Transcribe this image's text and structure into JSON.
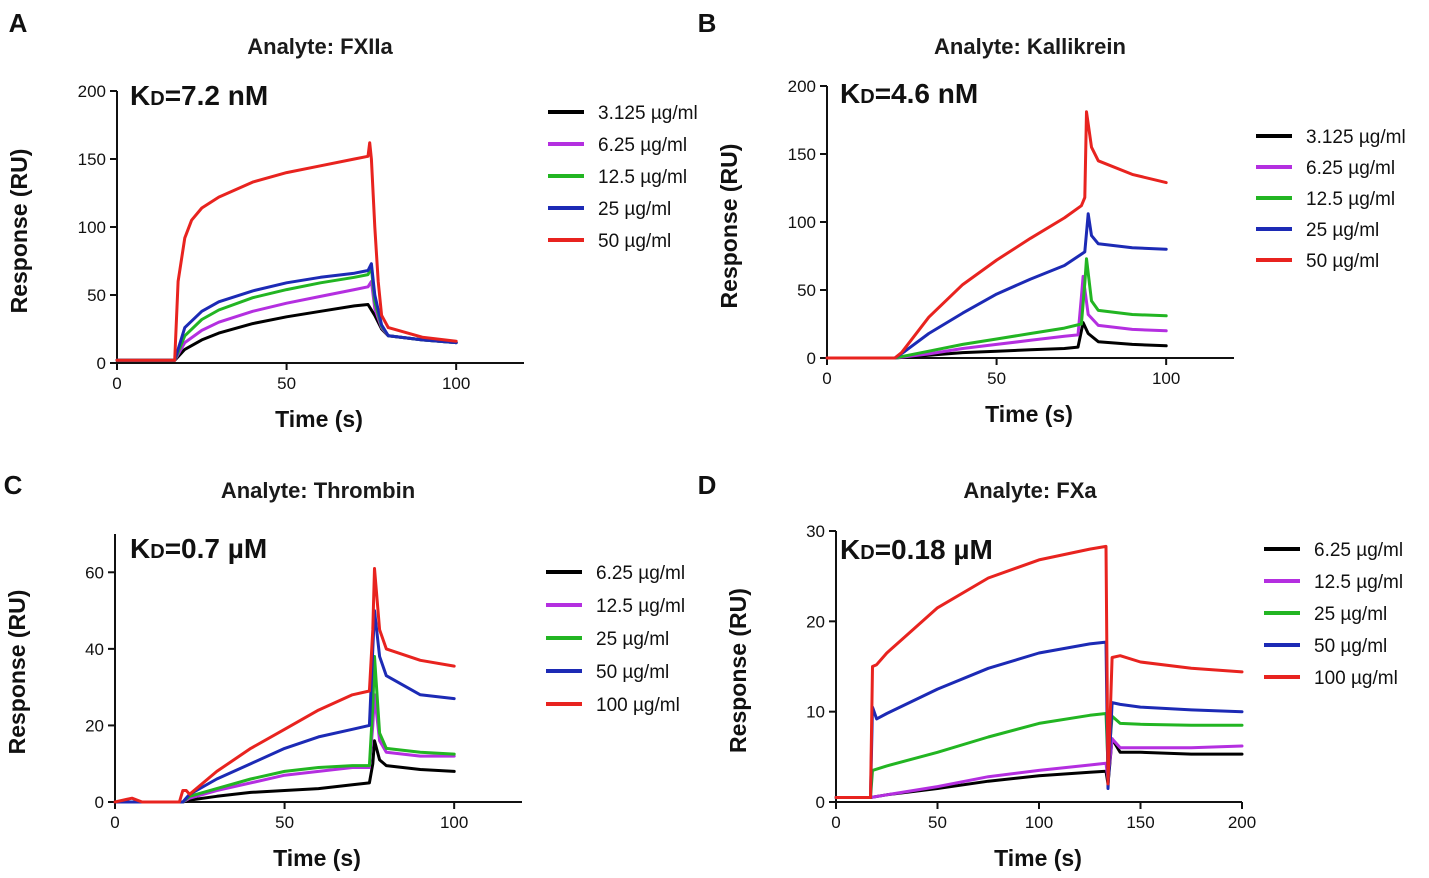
{
  "chart_data": [
    {
      "panel": "A",
      "type": "line",
      "title": "Analyte: FXIIa",
      "kd": {
        "prefix": "K",
        "sub": "D",
        "value": "=7.2 nM"
      },
      "xlabel": "Time (s)",
      "ylabel": "Response (RU)",
      "xlim": [
        0,
        120
      ],
      "ylim": [
        0,
        200
      ],
      "xticks": [
        0,
        50,
        100
      ],
      "yticks": [
        0,
        50,
        100,
        150,
        200
      ],
      "legend_position": "right",
      "series": [
        {
          "name": "3.125 µg/ml",
          "color": "#000000",
          "x": [
            0,
            17,
            20,
            25,
            30,
            40,
            50,
            60,
            70,
            74,
            76,
            78,
            80,
            90,
            100
          ],
          "y": [
            2,
            2,
            10,
            17,
            22,
            29,
            34,
            38,
            42,
            43,
            35,
            25,
            20,
            17,
            15
          ]
        },
        {
          "name": "6.25 µg/ml",
          "color": "#b42fe0",
          "x": [
            0,
            17,
            20,
            25,
            30,
            40,
            50,
            60,
            70,
            74,
            75,
            76,
            78,
            80,
            90,
            100
          ],
          "y": [
            2,
            2,
            15,
            24,
            30,
            38,
            44,
            49,
            54,
            56,
            60,
            40,
            26,
            20,
            17,
            15
          ]
        },
        {
          "name": "12.5 µg/ml",
          "color": "#22b522",
          "x": [
            0,
            17,
            20,
            25,
            30,
            40,
            50,
            60,
            70,
            74,
            75,
            76,
            78,
            80,
            90,
            100
          ],
          "y": [
            2,
            2,
            20,
            32,
            39,
            48,
            54,
            59,
            63,
            65,
            70,
            45,
            27,
            20,
            17,
            15
          ]
        },
        {
          "name": "25 µg/ml",
          "color": "#1c2ab5",
          "x": [
            0,
            17,
            20,
            25,
            30,
            40,
            50,
            60,
            70,
            74,
            75,
            76,
            78,
            80,
            90,
            100
          ],
          "y": [
            2,
            2,
            26,
            38,
            45,
            53,
            59,
            63,
            66,
            68,
            73,
            50,
            28,
            20,
            17,
            15
          ]
        },
        {
          "name": "50 µg/ml",
          "color": "#e8231f",
          "x": [
            0,
            17,
            18,
            20,
            22,
            25,
            30,
            40,
            50,
            60,
            70,
            74,
            74.5,
            75,
            76,
            77,
            78,
            80,
            90,
            100
          ],
          "y": [
            2,
            2,
            60,
            92,
            105,
            114,
            122,
            133,
            140,
            145,
            150,
            152,
            162,
            150,
            100,
            60,
            35,
            26,
            19,
            16
          ]
        }
      ]
    },
    {
      "panel": "B",
      "type": "line",
      "title": "Analyte: Kallikrein",
      "kd": {
        "prefix": "K",
        "sub": "D",
        "value": "=4.6 nM"
      },
      "xlabel": "Time (s)",
      "ylabel": "Response (RU)",
      "xlim": [
        0,
        120
      ],
      "ylim": [
        0,
        200
      ],
      "xticks": [
        0,
        50,
        100
      ],
      "yticks": [
        0,
        50,
        100,
        150,
        200
      ],
      "legend_position": "right",
      "series": [
        {
          "name": "3.125 µg/ml",
          "color": "#000000",
          "x": [
            0,
            20,
            30,
            40,
            50,
            60,
            70,
            74,
            75,
            75.5,
            77,
            80,
            90,
            100
          ],
          "y": [
            0,
            0,
            2,
            4,
            5,
            6,
            7,
            8,
            20,
            26,
            18,
            12,
            10,
            9
          ]
        },
        {
          "name": "6.25 µg/ml",
          "color": "#b42fe0",
          "x": [
            0,
            20,
            30,
            40,
            50,
            60,
            70,
            74,
            75,
            75.5,
            77,
            80,
            90,
            100
          ],
          "y": [
            0,
            0,
            3,
            7,
            10,
            13,
            16,
            17,
            45,
            60,
            32,
            24,
            21,
            20
          ]
        },
        {
          "name": "12.5 µg/ml",
          "color": "#22b522",
          "x": [
            0,
            20,
            30,
            40,
            50,
            60,
            70,
            75,
            76,
            76.5,
            78,
            80,
            90,
            100
          ],
          "y": [
            0,
            0,
            5,
            10,
            14,
            18,
            22,
            25,
            55,
            73,
            42,
            35,
            32,
            31
          ]
        },
        {
          "name": "25 µg/ml",
          "color": "#1c2ab5",
          "x": [
            0,
            20,
            23,
            30,
            40,
            50,
            60,
            70,
            76,
            77,
            78,
            80,
            90,
            100
          ],
          "y": [
            0,
            0,
            5,
            18,
            33,
            47,
            58,
            68,
            78,
            106,
            90,
            84,
            81,
            80
          ]
        },
        {
          "name": "50 µg/ml",
          "color": "#e8231f",
          "x": [
            0,
            20,
            22,
            30,
            40,
            50,
            60,
            70,
            75,
            76,
            76.5,
            78,
            80,
            90,
            100
          ],
          "y": [
            0,
            0,
            4,
            30,
            54,
            72,
            88,
            103,
            112,
            118,
            181,
            155,
            145,
            135,
            129
          ]
        }
      ]
    },
    {
      "panel": "C",
      "type": "line",
      "title": "Analyte: Thrombin",
      "kd": {
        "prefix": "K",
        "sub": "D",
        "value": "=0.7 µM"
      },
      "xlabel": "Time (s)",
      "ylabel": "Response (RU)",
      "xlim": [
        0,
        120
      ],
      "ylim": [
        0,
        70
      ],
      "xticks": [
        0,
        50,
        100
      ],
      "yticks": [
        0,
        20,
        40,
        60
      ],
      "legend_position": "right",
      "series": [
        {
          "name": "6.25 µg/ml",
          "color": "#000000",
          "x": [
            0,
            20,
            22,
            30,
            40,
            50,
            60,
            70,
            75,
            76,
            76.5,
            78,
            80,
            90,
            100
          ],
          "y": [
            0,
            0,
            0.5,
            1.5,
            2.5,
            3,
            3.5,
            4.5,
            5,
            10,
            16,
            11,
            9.5,
            8.5,
            8
          ]
        },
        {
          "name": "12.5 µg/ml",
          "color": "#b42fe0",
          "x": [
            0,
            20,
            22,
            30,
            40,
            50,
            60,
            70,
            75,
            76,
            76.5,
            78,
            80,
            90,
            100
          ],
          "y": [
            0,
            0,
            1,
            3,
            5,
            7,
            8,
            9,
            9,
            20,
            28,
            16,
            13,
            12,
            12
          ]
        },
        {
          "name": "25 µg/ml",
          "color": "#22b522",
          "x": [
            0,
            20,
            22,
            30,
            40,
            50,
            60,
            70,
            75,
            76,
            76.5,
            78,
            80,
            90,
            100
          ],
          "y": [
            0,
            0,
            1.5,
            3.5,
            6,
            8,
            9,
            9.5,
            9.5,
            25,
            38,
            18,
            14,
            13,
            12.5
          ]
        },
        {
          "name": "50 µg/ml",
          "color": "#1c2ab5",
          "x": [
            0,
            20,
            22,
            30,
            40,
            50,
            60,
            70,
            75,
            76,
            76.5,
            78,
            80,
            90,
            100
          ],
          "y": [
            0,
            0,
            2,
            6,
            10,
            14,
            17,
            19,
            20,
            40,
            50,
            38,
            33,
            28,
            27
          ]
        },
        {
          "name": "100 µg/ml",
          "color": "#e8231f",
          "x": [
            0,
            5,
            8,
            19,
            20,
            21,
            22,
            30,
            40,
            50,
            60,
            70,
            75,
            76,
            76.5,
            78,
            80,
            90,
            100
          ],
          "y": [
            0,
            1,
            0,
            0,
            3,
            3,
            2,
            8,
            14,
            19,
            24,
            28,
            29,
            45,
            61,
            45,
            40,
            37,
            35.5
          ]
        }
      ]
    },
    {
      "panel": "D",
      "type": "line",
      "title": "Analyte: FXa",
      "kd": {
        "prefix": "K",
        "sub": "D",
        "value": "=0.18 µM"
      },
      "xlabel": "Time (s)",
      "ylabel": "Response (RU)",
      "xlim": [
        0,
        200
      ],
      "ylim": [
        0,
        30
      ],
      "xticks": [
        0,
        50,
        100,
        150,
        200
      ],
      "yticks": [
        0,
        10,
        20,
        30
      ],
      "legend_position": "right",
      "series": [
        {
          "name": "6.25 µg/ml",
          "color": "#000000",
          "x": [
            0,
            17,
            25,
            50,
            75,
            100,
            125,
            133,
            134,
            136,
            140,
            150,
            175,
            200
          ],
          "y": [
            0.5,
            0.5,
            0.8,
            1.5,
            2.3,
            2.9,
            3.3,
            3.4,
            2.0,
            7.0,
            5.5,
            5.5,
            5.3,
            5.3
          ]
        },
        {
          "name": "12.5 µg/ml",
          "color": "#b42fe0",
          "x": [
            0,
            17,
            25,
            50,
            75,
            100,
            125,
            133,
            134,
            136,
            140,
            150,
            175,
            200
          ],
          "y": [
            0.5,
            0.5,
            0.8,
            1.7,
            2.8,
            3.5,
            4.1,
            4.3,
            2.5,
            7.0,
            6.0,
            6.0,
            6.0,
            6.2
          ]
        },
        {
          "name": "25 µg/ml",
          "color": "#22b522",
          "x": [
            0,
            17,
            18,
            25,
            50,
            75,
            100,
            125,
            133,
            134,
            136,
            140,
            150,
            175,
            200
          ],
          "y": [
            0.5,
            0.5,
            3.5,
            4.0,
            5.5,
            7.2,
            8.7,
            9.6,
            9.8,
            4.0,
            9.5,
            8.7,
            8.6,
            8.5,
            8.5
          ]
        },
        {
          "name": "50 µg/ml",
          "color": "#1c2ab5",
          "x": [
            0,
            17,
            18,
            20,
            25,
            50,
            75,
            100,
            125,
            133,
            134,
            136,
            140,
            150,
            175,
            200
          ],
          "y": [
            0.5,
            0.5,
            10.5,
            9.2,
            9.8,
            12.5,
            14.8,
            16.5,
            17.5,
            17.7,
            1.5,
            11.0,
            10.8,
            10.5,
            10.2,
            10.0
          ]
        },
        {
          "name": "100 µg/ml",
          "color": "#e8231f",
          "x": [
            0,
            17,
            18,
            20,
            25,
            50,
            75,
            100,
            125,
            133,
            134,
            136,
            140,
            150,
            175,
            200
          ],
          "y": [
            0.5,
            0.5,
            15,
            15.2,
            16.5,
            21.5,
            24.8,
            26.8,
            28,
            28.3,
            2,
            16,
            16.2,
            15.5,
            14.8,
            14.4
          ]
        }
      ]
    }
  ]
}
